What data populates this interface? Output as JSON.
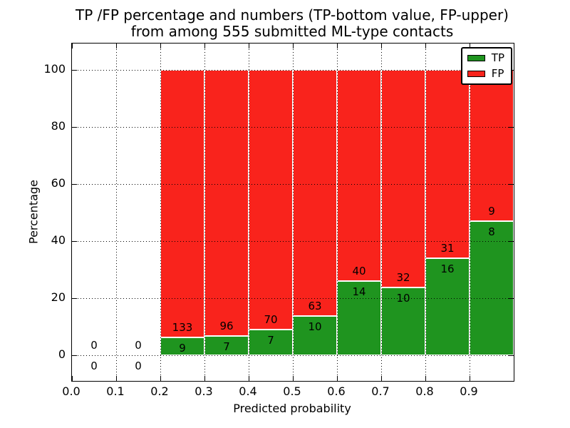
{
  "title": {
    "line1": "TP /FP percentage and numbers (TP-bottom value, FP-upper)",
    "line2": "from among 555 submitted ML-type contacts"
  },
  "chart_data": {
    "type": "bar",
    "stacked": true,
    "title": "TP /FP percentage and numbers (TP-bottom value, FP-upper)\nfrom among 555 submitted ML-type contacts",
    "xlabel": "Predicted probability",
    "ylabel": "Percentage",
    "xlim": [
      0.0,
      1.0
    ],
    "ylim": [
      -9,
      109.25
    ],
    "x_tick_values": [
      0.0,
      0.1,
      0.2,
      0.3,
      0.4,
      0.5,
      0.6,
      0.7,
      0.8,
      0.9
    ],
    "x_tick_labels": [
      "0.0",
      "0.1",
      "0.2",
      "0.3",
      "0.4",
      "0.5",
      "0.6",
      "0.7",
      "0.8",
      "0.9"
    ],
    "y_tick_values": [
      0,
      20,
      40,
      60,
      80,
      100
    ],
    "y_tick_labels": [
      "0",
      "20",
      "40",
      "60",
      "80",
      "100"
    ],
    "grid": true,
    "legend_position": "upper right",
    "bin_width": 0.1,
    "total_submitted": 555,
    "bins": [
      {
        "x0": 0.0,
        "tp": 0,
        "fp": 0
      },
      {
        "x0": 0.1,
        "tp": 0,
        "fp": 0
      },
      {
        "x0": 0.2,
        "tp": 9,
        "fp": 133
      },
      {
        "x0": 0.3,
        "tp": 7,
        "fp": 96
      },
      {
        "x0": 0.4,
        "tp": 7,
        "fp": 70
      },
      {
        "x0": 0.5,
        "tp": 10,
        "fp": 63
      },
      {
        "x0": 0.6,
        "tp": 14,
        "fp": 40
      },
      {
        "x0": 0.7,
        "tp": 10,
        "fp": 32
      },
      {
        "x0": 0.8,
        "tp": 16,
        "fp": 31
      },
      {
        "x0": 0.9,
        "tp": 8,
        "fp": 9
      }
    ],
    "series": [
      {
        "name": "TP",
        "color": "#1f941f"
      },
      {
        "name": "FP",
        "color": "#f9231c"
      }
    ],
    "bar_edge_color": "#ffffff",
    "axis_color": "#000000"
  }
}
